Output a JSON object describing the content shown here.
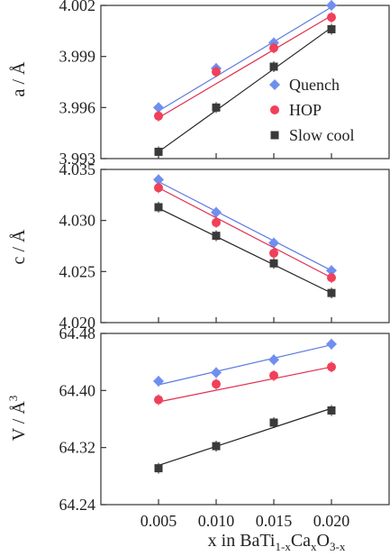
{
  "chart_data": [
    {
      "type": "scatter",
      "x": [
        0.005,
        0.01,
        0.015,
        0.02
      ],
      "xlim": [
        0.0,
        0.025
      ],
      "ylabel": "a / Å",
      "ylim": [
        3.993,
        4.002
      ],
      "yticks": [
        3.993,
        3.996,
        3.999,
        4.002
      ],
      "ytick_labels": [
        "3.993",
        "3.996",
        "3.999",
        "4.002"
      ],
      "grid": false,
      "legend": "right",
      "series": [
        {
          "name": "Quench",
          "marker": "diamond",
          "color": "#6f8ff0",
          "line_color": "#5b7be0",
          "values": [
            3.996,
            3.9983,
            3.9998,
            4.002
          ],
          "fit": [
            3.9958,
            3.9978,
            3.9998,
            4.0019
          ]
        },
        {
          "name": "HOP",
          "marker": "circle",
          "color": "#f0405a",
          "line_color": "#e03050",
          "values": [
            3.9955,
            3.9981,
            3.9995,
            4.0013
          ],
          "fit": [
            3.9954,
            3.9974,
            3.9994,
            4.0014
          ]
        },
        {
          "name": "Slow cool",
          "marker": "square",
          "color": "#3a3a3a",
          "line_color": "#222222",
          "values": [
            3.9934,
            3.996,
            3.9984,
            4.0006
          ],
          "fit": [
            3.9934,
            3.9958,
            3.9982,
            4.0007
          ]
        }
      ]
    },
    {
      "type": "scatter",
      "x": [
        0.005,
        0.01,
        0.015,
        0.02
      ],
      "xlim": [
        0.0,
        0.025
      ],
      "ylabel": "c / Å",
      "ylim": [
        4.02,
        4.035
      ],
      "yticks": [
        4.02,
        4.025,
        4.03,
        4.035
      ],
      "ytick_labels": [
        "4.020",
        "4.025",
        "4.030",
        "4.035"
      ],
      "grid": false,
      "series": [
        {
          "name": "Quench",
          "marker": "diamond",
          "color": "#6f8ff0",
          "line_color": "#5b7be0",
          "values": [
            4.034,
            4.0308,
            4.0278,
            4.0251
          ],
          "fit": [
            4.0338,
            4.0309,
            4.028,
            4.0251
          ]
        },
        {
          "name": "HOP",
          "marker": "circle",
          "color": "#f0405a",
          "line_color": "#e03050",
          "values": [
            4.0332,
            4.0298,
            4.0268,
            4.0244
          ],
          "fit": [
            4.0332,
            4.0302,
            4.0273,
            4.0244
          ]
        },
        {
          "name": "Slow cool",
          "marker": "square",
          "color": "#3a3a3a",
          "line_color": "#222222",
          "values": [
            4.0313,
            4.0285,
            4.0258,
            4.0229
          ],
          "fit": [
            4.0312,
            4.0284,
            4.0257,
            4.0229
          ]
        }
      ]
    },
    {
      "type": "scatter",
      "x": [
        0.005,
        0.01,
        0.015,
        0.02
      ],
      "xlim": [
        0.0,
        0.025
      ],
      "xlabel": "x in BaTi1-xCaxO3-x",
      "xticks": [
        0.005,
        0.01,
        0.015,
        0.02
      ],
      "xtick_labels": [
        "0.005",
        "0.010",
        "0.015",
        "0.020"
      ],
      "ylabel": "V / Å3",
      "ylim": [
        64.24,
        64.48
      ],
      "yticks": [
        64.24,
        64.32,
        64.4,
        64.48
      ],
      "ytick_labels": [
        "64.24",
        "64.32",
        "64.40",
        "64.48"
      ],
      "grid": false,
      "series": [
        {
          "name": "Quench",
          "marker": "diamond",
          "color": "#6f8ff0",
          "line_color": "#5b7be0",
          "values": [
            64.413,
            64.425,
            64.443,
            64.465
          ],
          "fit": [
            64.408,
            64.427,
            64.446,
            64.464
          ]
        },
        {
          "name": "HOP",
          "marker": "circle",
          "color": "#f0405a",
          "line_color": "#e03050",
          "values": [
            64.387,
            64.409,
            64.421,
            64.433
          ],
          "fit": [
            64.384,
            64.4,
            64.417,
            64.433
          ]
        },
        {
          "name": "Slow cool",
          "marker": "square",
          "color": "#3a3a3a",
          "line_color": "#222222",
          "values": [
            64.291,
            64.322,
            64.355,
            64.372
          ],
          "fit": [
            64.295,
            64.322,
            64.349,
            64.375
          ]
        }
      ]
    }
  ],
  "x_axis_title": {
    "prefix": "x in BaTi",
    "sub1": "1-x",
    "mid": "Ca",
    "sub2": "x",
    "mid2": "O",
    "sub3": "3-x"
  },
  "y_axis_titles": [
    {
      "text": "a / Å",
      "sup": ""
    },
    {
      "text": "c / Å",
      "sup": ""
    },
    {
      "text": "V / Å",
      "sup": "3"
    }
  ]
}
